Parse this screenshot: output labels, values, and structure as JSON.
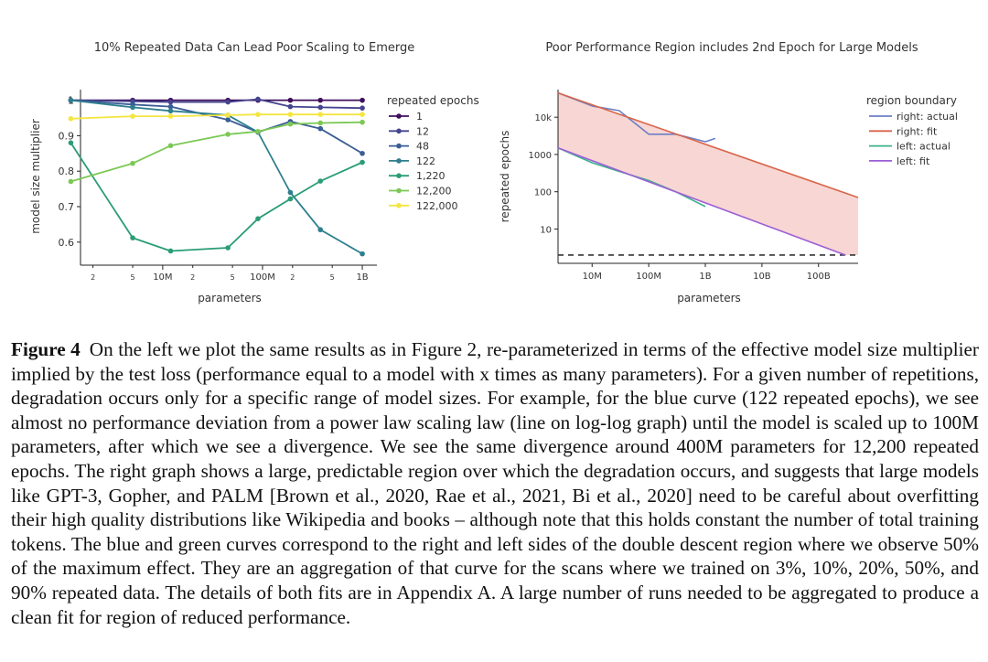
{
  "chart_data": [
    {
      "type": "line",
      "title": "10% Repeated Data Can Lead Poor Scaling to Emerge",
      "xlabel": "parameters",
      "ylabel": "model size multiplier",
      "xscale": "log",
      "xlim": [
        1500000,
        1400000000
      ],
      "ylim": [
        0.535,
        1.03
      ],
      "yticks": [
        1,
        0.9,
        0.8,
        0.7,
        0.6
      ],
      "ytick_labels": [
        "1",
        "0.9",
        "0.8",
        "0.7",
        "0.6"
      ],
      "xticks": [
        {
          "value": 2000000,
          "label": "2",
          "major": false
        },
        {
          "value": 5000000,
          "label": "5",
          "major": false
        },
        {
          "value": 10000000,
          "label": "10M",
          "major": true
        },
        {
          "value": 20000000,
          "label": "2",
          "major": false
        },
        {
          "value": 50000000,
          "label": "5",
          "major": false
        },
        {
          "value": 100000000,
          "label": "100M",
          "major": true
        },
        {
          "value": 200000000,
          "label": "2",
          "major": false
        },
        {
          "value": 500000000,
          "label": "5",
          "major": false
        },
        {
          "value": 1000000000,
          "label": "1B",
          "major": true
        }
      ],
      "legend_title": "repeated epochs",
      "legend_position": "right",
      "x": [
        1200000,
        5000000,
        12000000,
        45000000,
        90000000,
        190000000,
        380000000,
        1000000000
      ],
      "series": [
        {
          "name": "1",
          "color": "#3f0f5c",
          "values": [
            1.0,
            1.0,
            1.0,
            1.0,
            1.0,
            1.0,
            1.0,
            1.0
          ]
        },
        {
          "name": "12",
          "color": "#45448f",
          "values": [
            1.0,
            0.997,
            0.995,
            0.995,
            1.003,
            0.982,
            0.98,
            0.978
          ]
        },
        {
          "name": "48",
          "color": "#3a5d95",
          "values": [
            1.0,
            0.988,
            0.982,
            0.945,
            0.91,
            0.94,
            0.92,
            0.85
          ]
        },
        {
          "name": "122",
          "color": "#2e7f8e",
          "values": [
            1.0,
            0.98,
            0.97,
            0.958,
            0.91,
            0.74,
            0.635,
            0.567
          ]
        },
        {
          "name": "1,220",
          "color": "#2a9d76",
          "values": [
            0.88,
            0.612,
            0.575,
            0.584,
            0.666,
            0.722,
            0.772,
            0.825
          ]
        },
        {
          "name": "12,200",
          "color": "#7cc855",
          "values": [
            0.771,
            0.822,
            0.872,
            0.904,
            0.912,
            0.933,
            0.936,
            0.938
          ]
        },
        {
          "name": "122,000",
          "color": "#f4e542",
          "values": [
            0.948,
            0.955,
            0.955,
            0.958,
            0.96,
            0.96,
            0.96,
            0.96
          ]
        }
      ]
    },
    {
      "type": "line",
      "title": "Poor Performance Region includes 2nd Epoch for Large Models",
      "xlabel": "parameters",
      "ylabel": "repeated epochs",
      "xscale": "log",
      "yscale": "log",
      "xlim": [
        2500000,
        500000000000
      ],
      "ylim": [
        1.2,
        55000
      ],
      "xticks": [
        {
          "value": 10000000,
          "label": "10M"
        },
        {
          "value": 100000000,
          "label": "100M"
        },
        {
          "value": 1000000000,
          "label": "1B"
        },
        {
          "value": 10000000000,
          "label": "10B"
        },
        {
          "value": 100000000000,
          "label": "100B"
        }
      ],
      "yticks": [
        {
          "value": 10,
          "label": "10"
        },
        {
          "value": 100,
          "label": "100"
        },
        {
          "value": 1000,
          "label": "1000"
        },
        {
          "value": 10000,
          "label": "10k"
        }
      ],
      "legend_title": "region boundary",
      "legend_position": "top-right",
      "shaded_region": "between right: fit and left: fit",
      "reference_line": {
        "y": 2,
        "style": "dashed"
      },
      "series": [
        {
          "name": "right: actual",
          "color": "#6c7fc4",
          "x": [
            2500000,
            10000000,
            30000000,
            100000000,
            300000000,
            1000000000,
            1500000000
          ],
          "y": [
            45000,
            20000,
            15000,
            3500,
            3500,
            2200,
            2700
          ]
        },
        {
          "name": "right: fit",
          "color": "#d9654a",
          "x": [
            2500000,
            500000000000
          ],
          "y": [
            45000,
            70
          ]
        },
        {
          "name": "left: actual",
          "color": "#3cb18a",
          "x": [
            2500000,
            10000000,
            30000000,
            100000000,
            300000000,
            1000000000
          ],
          "y": [
            1500,
            600,
            350,
            200,
            100,
            40
          ]
        },
        {
          "name": "left: fit",
          "color": "#9c5fd6",
          "x": [
            2500000,
            300000000000
          ],
          "y": [
            1500,
            2
          ]
        }
      ]
    }
  ],
  "caption": {
    "label": "Figure 4",
    "text": "On the left we plot the same results as in Figure 2, re-parameterized in terms of the effective model size multiplier implied by the test loss (performance equal to a model with x times as many parameters). For a given number of repetitions, degradation occurs only for a specific range of model sizes. For example, for the blue curve (122 repeated epochs), we see almost no performance deviation from a power law scaling law (line on log-log graph) until the model is scaled up to 100M parameters, after which we see a divergence. We see the same divergence around 400M parameters for 12,200 repeated epochs. The right graph shows a large, predictable region over which the degradation occurs, and suggests that large models like GPT-3, Gopher, and PALM [Brown et al., 2020, Rae et al., 2021, Bi et al., 2020] need to be careful about overfitting their high quality distributions like Wikipedia and books – although note that this holds constant the number of total training tokens. The blue and green curves correspond to the right and left sides of the double descent region where we observe 50% of the maximum effect. They are an aggregation of that curve for the scans where we trained on 3%, 10%, 20%, 50%, and 90% repeated data. The details of both fits are in Appendix A. A large number of runs needed to be aggregated to produce a clean fit for region of reduced performance."
  }
}
